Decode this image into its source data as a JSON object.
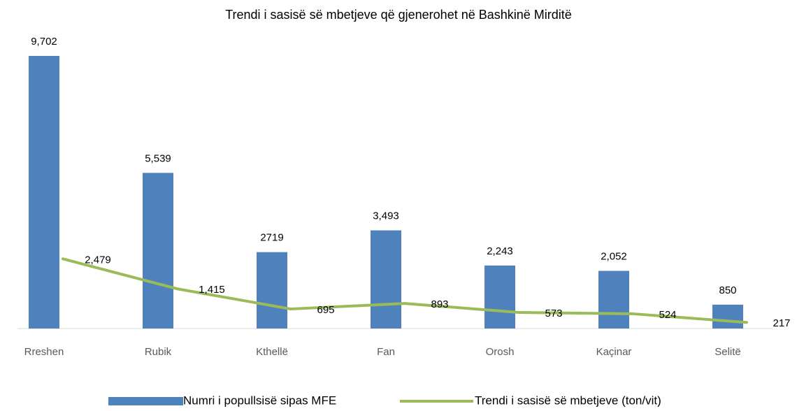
{
  "chart_data": {
    "type": "combo",
    "title": "Trendi i sasisë së mbetjeve që gjenerohet në Bashkinë Mirditë",
    "categories": [
      "Rreshen",
      "Rubik",
      "Kthellë",
      "Fan",
      "Orosh",
      "Kaçinar",
      "Selitë"
    ],
    "ylim": [
      0,
      10000
    ],
    "series": [
      {
        "name": "Numri i popullsisë sipas MFE",
        "type": "bar",
        "color": "#4f81bd",
        "values": [
          9702,
          5539,
          2719,
          3493,
          2243,
          2052,
          850
        ],
        "value_labels": [
          "9,702",
          "5,539",
          "2719",
          "3,493",
          "2,243",
          "2,052",
          "850"
        ]
      },
      {
        "name": "Trendi i sasisë së mbetjeve (ton/vit)",
        "type": "line",
        "color": "#9bbb59",
        "values": [
          2479,
          1415,
          695,
          893,
          573,
          524,
          217
        ],
        "value_labels": [
          "2,479",
          "1,415",
          "695",
          "893",
          "573",
          "524",
          "217"
        ]
      }
    ]
  }
}
